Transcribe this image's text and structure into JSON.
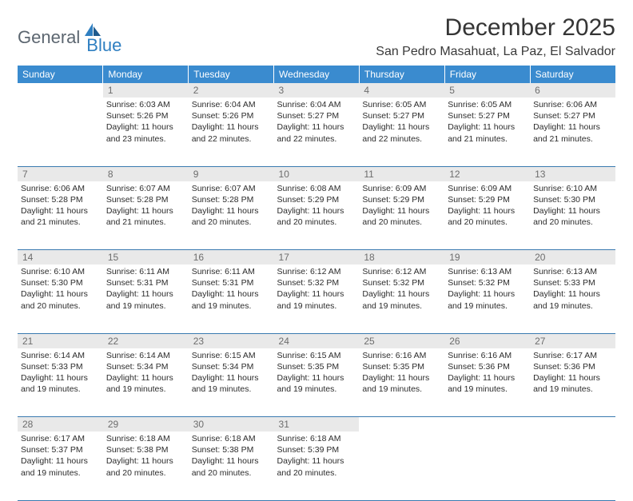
{
  "logo": {
    "text1": "General",
    "text2": "Blue"
  },
  "title": "December 2025",
  "location": "San Pedro Masahuat, La Paz, El Salvador",
  "colors": {
    "header_bg": "#3a8bcf",
    "header_text": "#ffffff",
    "daynum_bg": "#e9e9e9",
    "daynum_text": "#6d6d6d",
    "cell_text": "#2c2c2c",
    "border": "#3a7ab0",
    "logo_gray": "#5c6670",
    "logo_blue": "#2f7fc1"
  },
  "weekdays": [
    "Sunday",
    "Monday",
    "Tuesday",
    "Wednesday",
    "Thursday",
    "Friday",
    "Saturday"
  ],
  "weeks": [
    {
      "nums": [
        "",
        "1",
        "2",
        "3",
        "4",
        "5",
        "6"
      ],
      "cells": [
        {
          "empty": true
        },
        {
          "sunrise": "Sunrise: 6:03 AM",
          "sunset": "Sunset: 5:26 PM",
          "day1": "Daylight: 11 hours",
          "day2": "and 23 minutes."
        },
        {
          "sunrise": "Sunrise: 6:04 AM",
          "sunset": "Sunset: 5:26 PM",
          "day1": "Daylight: 11 hours",
          "day2": "and 22 minutes."
        },
        {
          "sunrise": "Sunrise: 6:04 AM",
          "sunset": "Sunset: 5:27 PM",
          "day1": "Daylight: 11 hours",
          "day2": "and 22 minutes."
        },
        {
          "sunrise": "Sunrise: 6:05 AM",
          "sunset": "Sunset: 5:27 PM",
          "day1": "Daylight: 11 hours",
          "day2": "and 22 minutes."
        },
        {
          "sunrise": "Sunrise: 6:05 AM",
          "sunset": "Sunset: 5:27 PM",
          "day1": "Daylight: 11 hours",
          "day2": "and 21 minutes."
        },
        {
          "sunrise": "Sunrise: 6:06 AM",
          "sunset": "Sunset: 5:27 PM",
          "day1": "Daylight: 11 hours",
          "day2": "and 21 minutes."
        }
      ]
    },
    {
      "nums": [
        "7",
        "8",
        "9",
        "10",
        "11",
        "12",
        "13"
      ],
      "cells": [
        {
          "sunrise": "Sunrise: 6:06 AM",
          "sunset": "Sunset: 5:28 PM",
          "day1": "Daylight: 11 hours",
          "day2": "and 21 minutes."
        },
        {
          "sunrise": "Sunrise: 6:07 AM",
          "sunset": "Sunset: 5:28 PM",
          "day1": "Daylight: 11 hours",
          "day2": "and 21 minutes."
        },
        {
          "sunrise": "Sunrise: 6:07 AM",
          "sunset": "Sunset: 5:28 PM",
          "day1": "Daylight: 11 hours",
          "day2": "and 20 minutes."
        },
        {
          "sunrise": "Sunrise: 6:08 AM",
          "sunset": "Sunset: 5:29 PM",
          "day1": "Daylight: 11 hours",
          "day2": "and 20 minutes."
        },
        {
          "sunrise": "Sunrise: 6:09 AM",
          "sunset": "Sunset: 5:29 PM",
          "day1": "Daylight: 11 hours",
          "day2": "and 20 minutes."
        },
        {
          "sunrise": "Sunrise: 6:09 AM",
          "sunset": "Sunset: 5:29 PM",
          "day1": "Daylight: 11 hours",
          "day2": "and 20 minutes."
        },
        {
          "sunrise": "Sunrise: 6:10 AM",
          "sunset": "Sunset: 5:30 PM",
          "day1": "Daylight: 11 hours",
          "day2": "and 20 minutes."
        }
      ]
    },
    {
      "nums": [
        "14",
        "15",
        "16",
        "17",
        "18",
        "19",
        "20"
      ],
      "cells": [
        {
          "sunrise": "Sunrise: 6:10 AM",
          "sunset": "Sunset: 5:30 PM",
          "day1": "Daylight: 11 hours",
          "day2": "and 20 minutes."
        },
        {
          "sunrise": "Sunrise: 6:11 AM",
          "sunset": "Sunset: 5:31 PM",
          "day1": "Daylight: 11 hours",
          "day2": "and 19 minutes."
        },
        {
          "sunrise": "Sunrise: 6:11 AM",
          "sunset": "Sunset: 5:31 PM",
          "day1": "Daylight: 11 hours",
          "day2": "and 19 minutes."
        },
        {
          "sunrise": "Sunrise: 6:12 AM",
          "sunset": "Sunset: 5:32 PM",
          "day1": "Daylight: 11 hours",
          "day2": "and 19 minutes."
        },
        {
          "sunrise": "Sunrise: 6:12 AM",
          "sunset": "Sunset: 5:32 PM",
          "day1": "Daylight: 11 hours",
          "day2": "and 19 minutes."
        },
        {
          "sunrise": "Sunrise: 6:13 AM",
          "sunset": "Sunset: 5:32 PM",
          "day1": "Daylight: 11 hours",
          "day2": "and 19 minutes."
        },
        {
          "sunrise": "Sunrise: 6:13 AM",
          "sunset": "Sunset: 5:33 PM",
          "day1": "Daylight: 11 hours",
          "day2": "and 19 minutes."
        }
      ]
    },
    {
      "nums": [
        "21",
        "22",
        "23",
        "24",
        "25",
        "26",
        "27"
      ],
      "cells": [
        {
          "sunrise": "Sunrise: 6:14 AM",
          "sunset": "Sunset: 5:33 PM",
          "day1": "Daylight: 11 hours",
          "day2": "and 19 minutes."
        },
        {
          "sunrise": "Sunrise: 6:14 AM",
          "sunset": "Sunset: 5:34 PM",
          "day1": "Daylight: 11 hours",
          "day2": "and 19 minutes."
        },
        {
          "sunrise": "Sunrise: 6:15 AM",
          "sunset": "Sunset: 5:34 PM",
          "day1": "Daylight: 11 hours",
          "day2": "and 19 minutes."
        },
        {
          "sunrise": "Sunrise: 6:15 AM",
          "sunset": "Sunset: 5:35 PM",
          "day1": "Daylight: 11 hours",
          "day2": "and 19 minutes."
        },
        {
          "sunrise": "Sunrise: 6:16 AM",
          "sunset": "Sunset: 5:35 PM",
          "day1": "Daylight: 11 hours",
          "day2": "and 19 minutes."
        },
        {
          "sunrise": "Sunrise: 6:16 AM",
          "sunset": "Sunset: 5:36 PM",
          "day1": "Daylight: 11 hours",
          "day2": "and 19 minutes."
        },
        {
          "sunrise": "Sunrise: 6:17 AM",
          "sunset": "Sunset: 5:36 PM",
          "day1": "Daylight: 11 hours",
          "day2": "and 19 minutes."
        }
      ]
    },
    {
      "nums": [
        "28",
        "29",
        "30",
        "31",
        "",
        "",
        ""
      ],
      "cells": [
        {
          "sunrise": "Sunrise: 6:17 AM",
          "sunset": "Sunset: 5:37 PM",
          "day1": "Daylight: 11 hours",
          "day2": "and 19 minutes."
        },
        {
          "sunrise": "Sunrise: 6:18 AM",
          "sunset": "Sunset: 5:38 PM",
          "day1": "Daylight: 11 hours",
          "day2": "and 20 minutes."
        },
        {
          "sunrise": "Sunrise: 6:18 AM",
          "sunset": "Sunset: 5:38 PM",
          "day1": "Daylight: 11 hours",
          "day2": "and 20 minutes."
        },
        {
          "sunrise": "Sunrise: 6:18 AM",
          "sunset": "Sunset: 5:39 PM",
          "day1": "Daylight: 11 hours",
          "day2": "and 20 minutes."
        },
        {
          "empty": true
        },
        {
          "empty": true
        },
        {
          "empty": true
        }
      ]
    }
  ]
}
